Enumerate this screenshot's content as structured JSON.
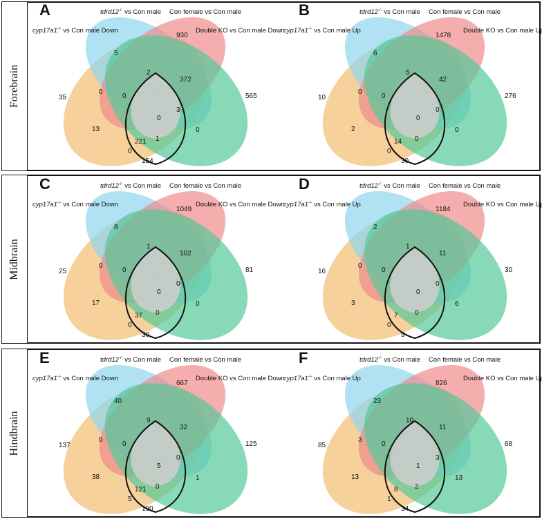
{
  "rows": [
    {
      "region": "Forebrain",
      "panels": [
        {
          "letter": "A",
          "labels": {
            "cyp_gene": "cyp17a1",
            "cyp_sup": "-/-",
            "cyp_rest": " vs Con male Down",
            "tdrd_gene": "tdrd12",
            "tdrd_sup": "-/-",
            "tdrd_rest": " vs Con male",
            "female": "Con female vs Con male",
            "double": "Double KO vs Con male Down"
          },
          "counts": {
            "y_only": "35",
            "b_only": "5",
            "p_only": "930",
            "g_only": "565",
            "yb": "0",
            "bp": "2",
            "pg": "372",
            "yp": "0",
            "bg": "3",
            "ybp": "0",
            "bpg": "0",
            "ybpg": "0",
            "yg": "221",
            "ypg": "13",
            "ybg": "1",
            "ypg2": "154"
          }
        },
        {
          "letter": "B",
          "labels": {
            "cyp_gene": "cyp17a1",
            "cyp_sup": "-/-",
            "cyp_rest": " vs Con male Up",
            "tdrd_gene": "tdrd12",
            "tdrd_sup": "-/-",
            "tdrd_rest": " vs Con male",
            "female": "Con female vs Con male",
            "double": "Double KO vs Con male Up"
          },
          "counts": {
            "y_only": "10",
            "b_only": "6",
            "p_only": "1478",
            "g_only": "276",
            "yb": "0",
            "bp": "5",
            "pg": "42",
            "yp": "0",
            "bg": "0",
            "ybp": "0",
            "bpg": "0",
            "ybpg": "0",
            "yg": "14",
            "ypg": "2",
            "ybg": "0",
            "ypg2": "30"
          }
        }
      ]
    },
    {
      "region": "Midbrain",
      "panels": [
        {
          "letter": "C",
          "labels": {
            "cyp_gene": "cyp17a1",
            "cyp_sup": "-/-",
            "cyp_rest": " vs Con male Down",
            "tdrd_gene": "tdrd12",
            "tdrd_sup": "-/-",
            "tdrd_rest": " vs Con male",
            "female": "Con female vs Con male",
            "double": "Double KO vs Con male Down"
          },
          "counts": {
            "y_only": "25",
            "b_only": "8",
            "p_only": "1049",
            "g_only": "81",
            "yb": "0",
            "bp": "1",
            "pg": "102",
            "yp": "0",
            "bg": "0",
            "ybp": "0",
            "bpg": "0",
            "ybpg": "0",
            "yg": "37",
            "ypg": "17",
            "ybg": "0",
            "ypg2": "30"
          }
        },
        {
          "letter": "D",
          "labels": {
            "cyp_gene": "cyp17a1",
            "cyp_sup": "-/-",
            "cyp_rest": " vs Con male Up",
            "tdrd_gene": "tdrd12",
            "tdrd_sup": "-/-",
            "tdrd_rest": " vs Con male",
            "female": "Con female vs Con male",
            "double": "Double KO vs Con male Up"
          },
          "counts": {
            "y_only": "16",
            "b_only": "2",
            "p_only": "1184",
            "g_only": "30",
            "yb": "0",
            "bp": "1",
            "pg": "11",
            "yp": "0",
            "bg": "0",
            "ybp": "0",
            "bpg": "6",
            "ybpg": "0",
            "yg": "7",
            "ypg": "3",
            "ybg": "0",
            "ypg2": "9"
          }
        }
      ]
    },
    {
      "region": "Hindbrain",
      "panels": [
        {
          "letter": "E",
          "labels": {
            "cyp_gene": "cyp17a1",
            "cyp_sup": "-/-",
            "cyp_rest": " vs Con male Down",
            "tdrd_gene": "tdrd12",
            "tdrd_sup": "-/-",
            "tdrd_rest": " vs Con male",
            "female": "Con female vs Con male",
            "double": "Double KO vs Con male Down"
          },
          "counts": {
            "y_only": "137",
            "b_only": "40",
            "p_only": "667",
            "g_only": "125",
            "yb": "0",
            "bp": "9",
            "pg": "32",
            "yp": "0",
            "bg": "0",
            "ybp": "5",
            "bpg": "1",
            "ybpg": "5",
            "yg": "121",
            "ypg": "38",
            "ybg": "0",
            "ypg2": "190"
          }
        },
        {
          "letter": "F",
          "labels": {
            "cyp_gene": "cyp17a1",
            "cyp_sup": "-/-",
            "cyp_rest": " vs Con male Up",
            "tdrd_gene": "tdrd12",
            "tdrd_sup": "-/-",
            "tdrd_rest": " vs Con male",
            "female": "Con female vs Con male",
            "double": "Double KO vs Con male Up"
          },
          "counts": {
            "y_only": "85",
            "b_only": "23",
            "p_only": "826",
            "g_only": "68",
            "yb": "3",
            "bp": "10",
            "pg": "11",
            "yp": "0",
            "bg": "3",
            "ybp": "1",
            "bpg": "13",
            "ybpg": "1",
            "yg": "8",
            "ypg": "13",
            "ybg": "2",
            "ypg2": "34"
          }
        }
      ]
    }
  ],
  "colors": {
    "yellow": "#f3c27a",
    "blue": "#8fd6f0",
    "pink": "#f08c8c",
    "green": "#56c99a",
    "outline": "#111111"
  }
}
